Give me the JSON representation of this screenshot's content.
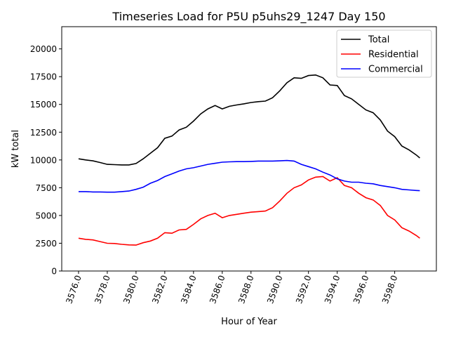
{
  "chart_data": {
    "type": "line",
    "title": "Timeseries Load for P5U p5uhs29_1247  Day 150",
    "xlabel": "Hour of Year",
    "ylabel": "kW total",
    "xlim": [
      3574.83,
      3600.9
    ],
    "ylim": [
      0,
      22000
    ],
    "xticks": [
      3576,
      3578,
      3580,
      3582,
      3584,
      3586,
      3588,
      3590,
      3592,
      3594,
      3596,
      3598
    ],
    "xtick_labels": [
      "3576.0",
      "3578.0",
      "3580.0",
      "3582.0",
      "3584.0",
      "3586.0",
      "3588.0",
      "3590.0",
      "3592.0",
      "3594.0",
      "3596.0",
      "3598.0"
    ],
    "yticks": [
      0,
      2500,
      5000,
      7500,
      10000,
      12500,
      15000,
      17500,
      20000
    ],
    "ytick_labels": [
      "0",
      "2500",
      "5000",
      "7500",
      "10000",
      "12500",
      "15000",
      "17500",
      "20000"
    ],
    "grid": false,
    "legend_position": "top-right",
    "x": [
      3576,
      3576.5,
      3577,
      3577.5,
      3578,
      3578.5,
      3579,
      3579.5,
      3580,
      3580.5,
      3581,
      3581.5,
      3582,
      3582.5,
      3583,
      3583.5,
      3584,
      3584.5,
      3585,
      3585.5,
      3586,
      3586.5,
      3587,
      3587.5,
      3588,
      3588.5,
      3589,
      3589.5,
      3590,
      3590.5,
      3591,
      3591.5,
      3592,
      3592.5,
      3593,
      3593.5,
      3594,
      3594.5,
      3595,
      3595.5,
      3596,
      3596.5,
      3597,
      3597.5,
      3598,
      3598.5,
      3599,
      3599.5,
      3599.75
    ],
    "series": [
      {
        "name": "Total",
        "color": "#000000",
        "values": [
          10100,
          10000,
          9920,
          9770,
          9600,
          9580,
          9550,
          9550,
          9680,
          10100,
          10600,
          11100,
          11950,
          12150,
          12700,
          12950,
          13500,
          14150,
          14600,
          14900,
          14600,
          14830,
          14950,
          15050,
          15170,
          15250,
          15300,
          15600,
          16220,
          16950,
          17400,
          17350,
          17600,
          17650,
          17400,
          16750,
          16700,
          15800,
          15500,
          15000,
          14500,
          14250,
          13600,
          12600,
          12100,
          11250,
          10900,
          10450,
          10180
        ]
      },
      {
        "name": "Residential",
        "color": "#ff0000",
        "values": [
          2950,
          2850,
          2800,
          2650,
          2500,
          2480,
          2400,
          2350,
          2330,
          2550,
          2700,
          2950,
          3450,
          3400,
          3700,
          3750,
          4200,
          4700,
          5000,
          5200,
          4800,
          5000,
          5100,
          5200,
          5300,
          5350,
          5400,
          5700,
          6300,
          7000,
          7500,
          7750,
          8200,
          8450,
          8500,
          8100,
          8400,
          7700,
          7500,
          7000,
          6600,
          6400,
          5900,
          5000,
          4600,
          3900,
          3600,
          3200,
          2950
        ]
      },
      {
        "name": "Commercial",
        "color": "#0000ff",
        "values": [
          7150,
          7150,
          7120,
          7120,
          7100,
          7100,
          7150,
          7200,
          7350,
          7550,
          7900,
          8150,
          8500,
          8750,
          9000,
          9200,
          9300,
          9450,
          9600,
          9700,
          9800,
          9830,
          9850,
          9850,
          9870,
          9900,
          9900,
          9900,
          9920,
          9950,
          9900,
          9600,
          9400,
          9200,
          8900,
          8650,
          8300,
          8100,
          8000,
          8000,
          7900,
          7850,
          7700,
          7600,
          7500,
          7350,
          7300,
          7250,
          7230
        ]
      }
    ]
  }
}
